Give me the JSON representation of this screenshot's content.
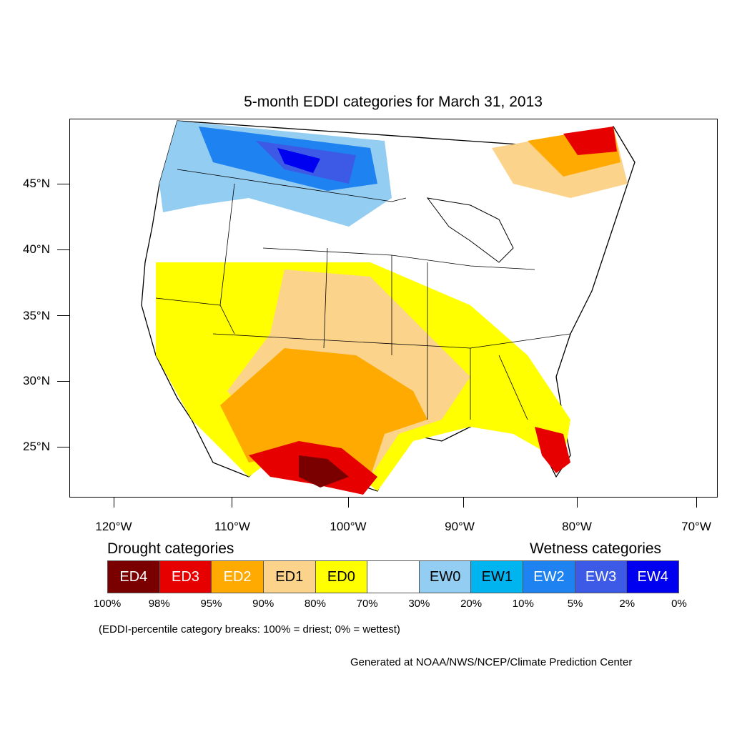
{
  "title": "5-month EDDI categories for March 31, 2013",
  "axes": {
    "lat_labels": [
      "45°N",
      "40°N",
      "35°N",
      "30°N",
      "25°N"
    ],
    "lon_labels": [
      "120°W",
      "110°W",
      "100°W",
      "90°W",
      "80°W",
      "70°W"
    ]
  },
  "legend": {
    "drought_title": "Drought categories",
    "wetness_title": "Wetness categories",
    "categories": [
      {
        "label": "ED4",
        "color": "#7a0000",
        "text_color": "#ffffff"
      },
      {
        "label": "ED3",
        "color": "#e60000",
        "text_color": "#ffffff"
      },
      {
        "label": "ED2",
        "color": "#ffaa00",
        "text_color": "#ffffff"
      },
      {
        "label": "ED1",
        "color": "#fcd38a",
        "text_color": "#000000"
      },
      {
        "label": "ED0",
        "color": "#ffff00",
        "text_color": "#000000"
      },
      {
        "label": "",
        "color": "#ffffff",
        "text_color": "#000000"
      },
      {
        "label": "EW0",
        "color": "#94cdf2",
        "text_color": "#000000"
      },
      {
        "label": "EW1",
        "color": "#00b4ef",
        "text_color": "#000000"
      },
      {
        "label": "EW2",
        "color": "#1e82f0",
        "text_color": "#ffffff"
      },
      {
        "label": "EW3",
        "color": "#3c5ae6",
        "text_color": "#ffffff"
      },
      {
        "label": "EW4",
        "color": "#0000f0",
        "text_color": "#ffffff"
      }
    ],
    "breaks": [
      "100%",
      "98%",
      "95%",
      "90%",
      "80%",
      "70%",
      "30%",
      "20%",
      "10%",
      "5%",
      "2%",
      "0%"
    ]
  },
  "note": "(EDDI-percentile category breaks: 100% = driest; 0% = wettest)",
  "credit": "Generated at NOAA/NWS/NCEP/Climate Prediction Center"
}
